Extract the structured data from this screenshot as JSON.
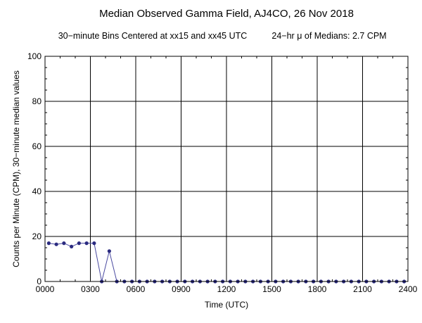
{
  "chart_data": {
    "type": "line",
    "title": "Median Observed Gamma Field, AJ4CO, 26 Nov 2018",
    "subtitle_left": "30−minute Bins Centered at xx15 and xx45 UTC",
    "subtitle_right": "24−hr μ of Medians: 2.7 CPM",
    "xlabel": "Time (UTC)",
    "ylabel": "Counts per Minute (CPM), 30−minute median values",
    "xlim": [
      0,
      24
    ],
    "ylim": [
      0,
      100
    ],
    "x_ticks": [
      0,
      3,
      6,
      9,
      12,
      15,
      18,
      21,
      24
    ],
    "x_tick_labels": [
      "0000",
      "0300",
      "0600",
      "0900",
      "1200",
      "1500",
      "1800",
      "2100",
      "2400"
    ],
    "y_ticks": [
      0,
      20,
      40,
      60,
      80,
      100
    ],
    "y_tick_labels": [
      "0",
      "20",
      "40",
      "60",
      "80",
      "100"
    ],
    "grid": true,
    "series": [
      {
        "color": "#4a4aa0",
        "marker_color": "#2b2b80",
        "x": [
          0.25,
          0.75,
          1.25,
          1.75,
          2.25,
          2.75,
          3.25,
          3.75,
          4.25,
          4.75,
          5.25,
          5.75,
          6.25,
          6.75,
          7.25,
          7.75,
          8.25,
          8.75,
          9.25,
          9.75,
          10.25,
          10.75,
          11.25,
          11.75,
          12.25,
          12.75,
          13.25,
          13.75,
          14.25,
          14.75,
          15.25,
          15.75,
          16.25,
          16.75,
          17.25,
          17.75,
          18.25,
          18.75,
          19.25,
          19.75,
          20.25,
          20.75,
          21.25,
          21.75,
          22.25,
          22.75,
          23.25,
          23.75
        ],
        "y": [
          17,
          16.5,
          17,
          15.5,
          17,
          17,
          17,
          0,
          13.5,
          0,
          0,
          0,
          0,
          0,
          0,
          0,
          0,
          0,
          0,
          0,
          0,
          0,
          0,
          0,
          0,
          0,
          0,
          0,
          0,
          0,
          0,
          0,
          0,
          0,
          0,
          0,
          0,
          0,
          0,
          0,
          0,
          0,
          0,
          0,
          0,
          0,
          0,
          0
        ]
      }
    ]
  }
}
